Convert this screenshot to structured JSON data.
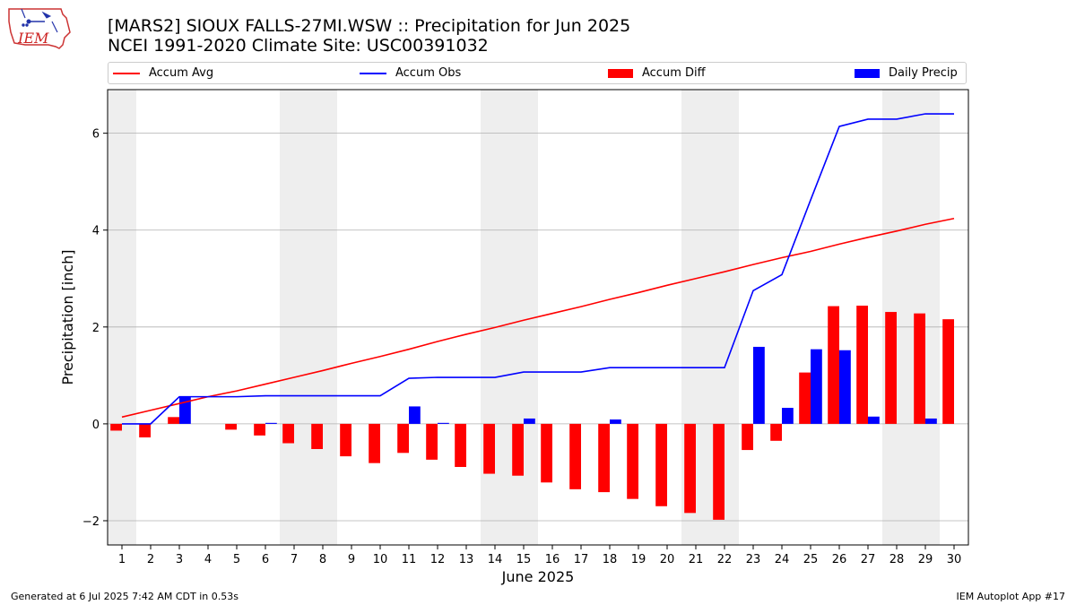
{
  "header": {
    "title_line1": "[MARS2] SIOUX FALLS-27MI.WSW :: Precipitation for Jun 2025",
    "title_line2": "NCEI 1991-2020 Climate Site: USC00391032"
  },
  "logo": {
    "text": "IEM",
    "icon": "iem-iowa-logo"
  },
  "legend": [
    {
      "label": "Accum Avg",
      "kind": "line",
      "color": "#ff0000"
    },
    {
      "label": "Accum Obs",
      "kind": "line",
      "color": "#0000ff"
    },
    {
      "label": "Accum Diff",
      "kind": "box",
      "color": "#ff0000"
    },
    {
      "label": "Daily Precip",
      "kind": "box",
      "color": "#0000ff"
    }
  ],
  "footer": {
    "left": "Generated at 6 Jul 2025 7:42 AM CDT in 0.53s",
    "right": "IEM Autoplot App #17"
  },
  "chart_data": {
    "type": "bar",
    "xlabel": "June 2025",
    "ylabel": "Precipitation [inch]",
    "x": [
      1,
      2,
      3,
      4,
      5,
      6,
      7,
      8,
      9,
      10,
      11,
      12,
      13,
      14,
      15,
      16,
      17,
      18,
      19,
      20,
      21,
      22,
      23,
      24,
      25,
      26,
      27,
      28,
      29,
      30
    ],
    "xlim": [
      0.5,
      30.5
    ],
    "ylim": [
      -2.5,
      6.9
    ],
    "yticks": [
      -2,
      0,
      2,
      4,
      6
    ],
    "ytick_labels": [
      "−2",
      "0",
      "2",
      "4",
      "6"
    ],
    "grid": "horizontal",
    "weekend_shading": [
      [
        0.5,
        1.5
      ],
      [
        6.5,
        8.5
      ],
      [
        13.5,
        15.5
      ],
      [
        20.5,
        22.5
      ],
      [
        27.5,
        29.5
      ]
    ],
    "series": [
      {
        "name": "Accum Avg",
        "type": "line",
        "color": "#ff0000",
        "values": [
          0.14,
          0.28,
          0.42,
          0.56,
          0.68,
          0.82,
          0.96,
          1.1,
          1.25,
          1.39,
          1.54,
          1.7,
          1.85,
          1.99,
          2.14,
          2.28,
          2.42,
          2.57,
          2.71,
          2.86,
          3.0,
          3.14,
          3.29,
          3.43,
          3.56,
          3.71,
          3.85,
          3.98,
          4.12,
          4.24
        ]
      },
      {
        "name": "Accum Obs",
        "type": "line",
        "color": "#0000ff",
        "values": [
          0.0,
          0.0,
          0.56,
          0.56,
          0.56,
          0.58,
          0.58,
          0.58,
          0.58,
          0.58,
          0.94,
          0.96,
          0.96,
          0.96,
          1.07,
          1.07,
          1.07,
          1.16,
          1.16,
          1.16,
          1.16,
          1.16,
          2.75,
          3.08,
          4.62,
          6.14,
          6.29,
          6.29,
          6.4,
          6.4
        ]
      },
      {
        "name": "Accum Diff",
        "type": "bar",
        "color": "#ff0000",
        "values": [
          -0.14,
          -0.28,
          0.14,
          0.0,
          -0.12,
          -0.24,
          -0.4,
          -0.52,
          -0.67,
          -0.81,
          -0.6,
          -0.74,
          -0.89,
          -1.03,
          -1.07,
          -1.21,
          -1.35,
          -1.41,
          -1.55,
          -1.7,
          -1.84,
          -1.98,
          -0.54,
          -0.35,
          1.06,
          2.43,
          2.44,
          2.31,
          2.28,
          2.16
        ]
      },
      {
        "name": "Daily Precip",
        "type": "bar",
        "color": "#0000ff",
        "values": [
          0.0,
          0.0,
          0.56,
          0.0,
          0.0,
          0.02,
          0.0,
          0.0,
          0.0,
          0.0,
          0.36,
          0.02,
          0.0,
          0.0,
          0.11,
          0.0,
          0.0,
          0.09,
          0.0,
          0.0,
          0.0,
          0.0,
          1.59,
          0.33,
          1.54,
          1.52,
          0.15,
          0.0,
          0.11,
          0.0
        ]
      }
    ]
  }
}
